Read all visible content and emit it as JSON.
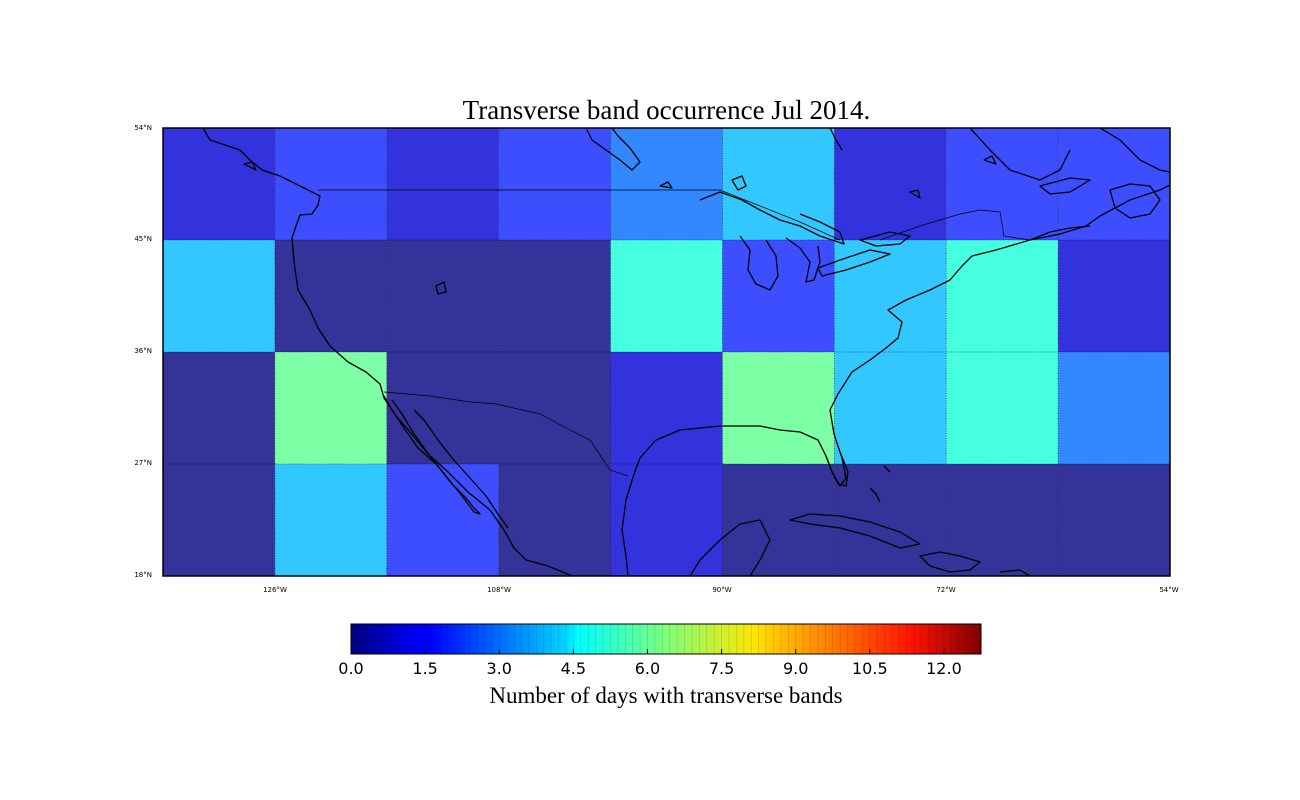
{
  "title": "Transverse band occurrence Jul 2014.",
  "colorbar": {
    "label": "Number of days with transverse bands",
    "min": 0.0,
    "max": 12.75,
    "ticks": [
      "0.0",
      "1.5",
      "3.0",
      "4.5",
      "6.0",
      "7.5",
      "9.0",
      "10.5",
      "12.0"
    ],
    "colormap": "jet"
  },
  "map": {
    "projection": "cylindrical",
    "lon_range": [
      -135,
      -54
    ],
    "lat_range": [
      18,
      54
    ],
    "lat_labels": [
      "54°N",
      "45°N",
      "36°N",
      "27°N",
      "18°N"
    ],
    "lon_labels": [
      "126°W",
      "108°W",
      "90°W",
      "72°W",
      "54°W"
    ]
  },
  "chart_data": {
    "type": "heatmap",
    "title": "Transverse band occurrence Jul 2014.",
    "x_bins_lon": [
      -135,
      -126,
      -117,
      -108,
      -99,
      -90,
      -81,
      -72,
      -63,
      -54
    ],
    "y_bins_lat": [
      54,
      45,
      36,
      27,
      18
    ],
    "values": [
      [
        1,
        2,
        1,
        2,
        3,
        4,
        1,
        2,
        2
      ],
      [
        4,
        0,
        0,
        0,
        5,
        2,
        4,
        5,
        1
      ],
      [
        0,
        6,
        0,
        0,
        1,
        6,
        4,
        5,
        3
      ],
      [
        0,
        4,
        2,
        0,
        1,
        0,
        0,
        0,
        0
      ]
    ],
    "colorbar_label": "Number of days with transverse bands",
    "vmin": 0,
    "vmax": 12.75
  },
  "colors": {
    "cell_0": "#333399",
    "cell_1": "#3333dd",
    "cell_2": "#3c4eff",
    "cell_3": "#3388ff",
    "cell_4": "#33c7ff",
    "cell_5": "#46ffe0",
    "cell_6": "#7dffa5"
  }
}
